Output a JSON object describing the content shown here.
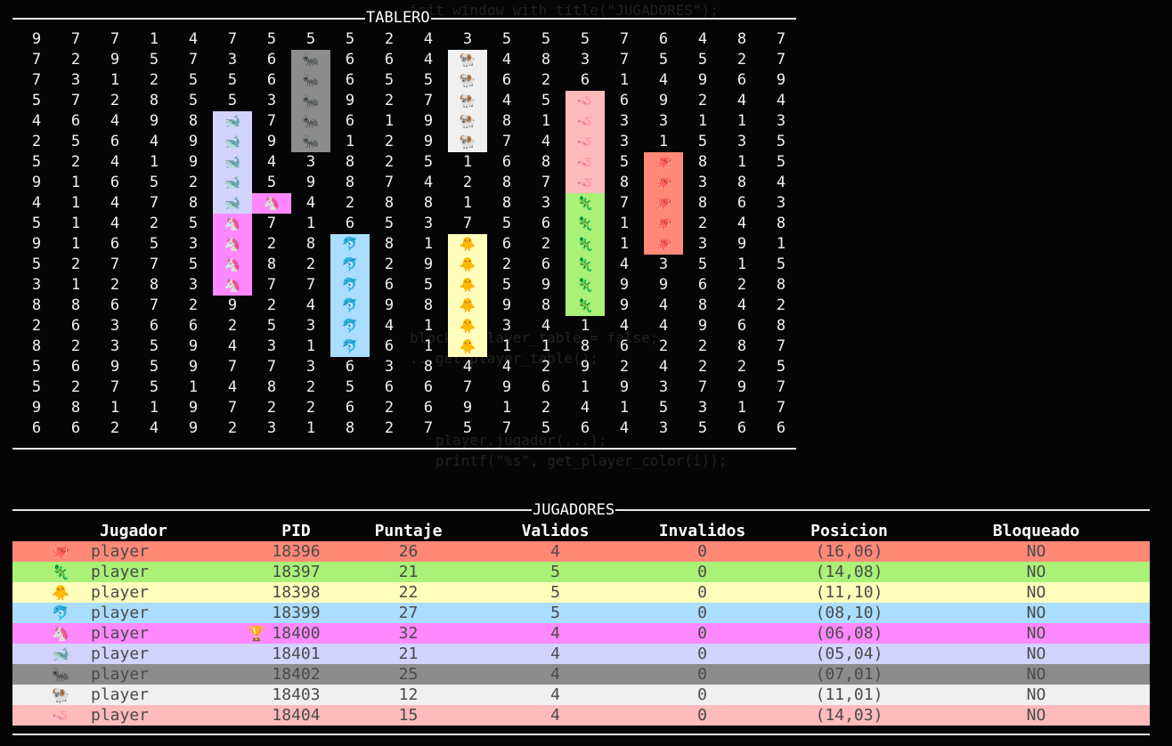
{
  "board": {
    "title": "TABLERO",
    "grid": [
      [
        "9",
        "7",
        "7",
        "1",
        "4",
        "7",
        "5",
        "5",
        "5",
        "2",
        "4",
        "3",
        "5",
        "5",
        "5",
        "7",
        "6",
        "4",
        "8",
        "7"
      ],
      [
        "7",
        "2",
        "9",
        "5",
        "7",
        "3",
        "6",
        "🐜",
        "6",
        "6",
        "4",
        "🐏",
        "4",
        "8",
        "3",
        "7",
        "5",
        "5",
        "2",
        "7"
      ],
      [
        "7",
        "3",
        "1",
        "2",
        "5",
        "5",
        "6",
        "🐜",
        "6",
        "5",
        "5",
        "🐏",
        "6",
        "2",
        "6",
        "1",
        "4",
        "9",
        "6",
        "9"
      ],
      [
        "5",
        "7",
        "2",
        "8",
        "5",
        "5",
        "3",
        "🐜",
        "9",
        "2",
        "7",
        "🐏",
        "4",
        "5",
        "🪱",
        "6",
        "9",
        "2",
        "4",
        "4"
      ],
      [
        "4",
        "6",
        "4",
        "9",
        "8",
        "🐋",
        "7",
        "🐜",
        "6",
        "1",
        "9",
        "🐏",
        "8",
        "1",
        "🪱",
        "3",
        "3",
        "1",
        "1",
        "3"
      ],
      [
        "2",
        "5",
        "6",
        "4",
        "9",
        "🐋",
        "9",
        "🐜",
        "1",
        "2",
        "9",
        "🐏",
        "7",
        "4",
        "🪱",
        "3",
        "1",
        "5",
        "3",
        "5"
      ],
      [
        "5",
        "2",
        "4",
        "1",
        "9",
        "🐋",
        "4",
        "3",
        "8",
        "2",
        "5",
        "1",
        "6",
        "8",
        "🪱",
        "5",
        "🐙",
        "8",
        "1",
        "5"
      ],
      [
        "9",
        "1",
        "6",
        "5",
        "2",
        "🐋",
        "5",
        "9",
        "8",
        "7",
        "4",
        "2",
        "8",
        "7",
        "🪱",
        "8",
        "🐙",
        "3",
        "8",
        "4"
      ],
      [
        "4",
        "1",
        "4",
        "7",
        "8",
        "🐋",
        "🦄",
        "4",
        "2",
        "8",
        "8",
        "1",
        "8",
        "3",
        "🦎",
        "7",
        "🐙",
        "8",
        "6",
        "3"
      ],
      [
        "5",
        "1",
        "4",
        "2",
        "5",
        "🦄",
        "7",
        "1",
        "6",
        "5",
        "3",
        "7",
        "5",
        "6",
        "🦎",
        "1",
        "🐙",
        "2",
        "4",
        "8"
      ],
      [
        "9",
        "1",
        "6",
        "5",
        "3",
        "🦄",
        "2",
        "8",
        "🐬",
        "8",
        "1",
        "🐥",
        "6",
        "2",
        "🦎",
        "1",
        "🐙",
        "3",
        "9",
        "1"
      ],
      [
        "5",
        "2",
        "7",
        "7",
        "5",
        "🦄",
        "8",
        "2",
        "🐬",
        "2",
        "9",
        "🐥",
        "2",
        "6",
        "🦎",
        "4",
        "3",
        "5",
        "1",
        "5"
      ],
      [
        "3",
        "1",
        "2",
        "8",
        "3",
        "🦄",
        "7",
        "7",
        "🐬",
        "6",
        "5",
        "🐥",
        "5",
        "9",
        "🦎",
        "9",
        "9",
        "6",
        "2",
        "8"
      ],
      [
        "8",
        "8",
        "6",
        "7",
        "2",
        "9",
        "2",
        "4",
        "🐬",
        "9",
        "8",
        "🐥",
        "9",
        "8",
        "🦎",
        "9",
        "4",
        "8",
        "4",
        "2"
      ],
      [
        "2",
        "6",
        "3",
        "6",
        "6",
        "2",
        "5",
        "3",
        "🐬",
        "4",
        "1",
        "🐥",
        "3",
        "4",
        "1",
        "4",
        "4",
        "9",
        "6",
        "8"
      ],
      [
        "8",
        "2",
        "3",
        "5",
        "9",
        "4",
        "3",
        "1",
        "🐬",
        "6",
        "1",
        "🐥",
        "1",
        "1",
        "8",
        "6",
        "2",
        "2",
        "8",
        "7"
      ],
      [
        "5",
        "6",
        "9",
        "5",
        "9",
        "7",
        "7",
        "3",
        "6",
        "3",
        "8",
        "4",
        "4",
        "2",
        "9",
        "2",
        "4",
        "2",
        "2",
        "5"
      ],
      [
        "5",
        "2",
        "7",
        "5",
        "1",
        "4",
        "8",
        "2",
        "5",
        "6",
        "6",
        "7",
        "9",
        "6",
        "1",
        "9",
        "3",
        "7",
        "9",
        "7"
      ],
      [
        "9",
        "8",
        "1",
        "1",
        "9",
        "7",
        "2",
        "2",
        "6",
        "2",
        "6",
        "9",
        "1",
        "2",
        "4",
        "1",
        "5",
        "3",
        "1",
        "7"
      ],
      [
        "6",
        "6",
        "2",
        "4",
        "9",
        "2",
        "3",
        "1",
        "8",
        "2",
        "7",
        "5",
        "7",
        "5",
        "6",
        "4",
        "3",
        "5",
        "6",
        "6"
      ]
    ]
  },
  "players_section": {
    "title": "JUGADORES",
    "headers": [
      "Jugador",
      "PID",
      "Puntaje",
      "Validos",
      "Invalidos",
      "Posicion",
      "Bloqueado"
    ]
  },
  "players": [
    {
      "icon": "🐙",
      "name": "player",
      "trophy": "",
      "pid": "18396",
      "score": "26",
      "valid": "4",
      "invalid": "0",
      "position": "(16,06)",
      "blocked": "NO",
      "color": "#ff8877"
    },
    {
      "icon": "🦎",
      "name": "player",
      "trophy": "",
      "pid": "18397",
      "score": "21",
      "valid": "5",
      "invalid": "0",
      "position": "(14,08)",
      "blocked": "NO",
      "color": "#aaf177"
    },
    {
      "icon": "🐥",
      "name": "player",
      "trophy": "",
      "pid": "18398",
      "score": "22",
      "valid": "5",
      "invalid": "0",
      "position": "(11,10)",
      "blocked": "NO",
      "color": "#ffffbb"
    },
    {
      "icon": "🐬",
      "name": "player",
      "trophy": "",
      "pid": "18399",
      "score": "27",
      "valid": "5",
      "invalid": "0",
      "position": "(08,10)",
      "blocked": "NO",
      "color": "#aaddff"
    },
    {
      "icon": "🦄",
      "name": "player",
      "trophy": "🏆",
      "pid": "18400",
      "score": "32",
      "valid": "4",
      "invalid": "0",
      "position": "(06,08)",
      "blocked": "NO",
      "color": "#ff88ff"
    },
    {
      "icon": "🐋",
      "name": "player",
      "trophy": "",
      "pid": "18401",
      "score": "21",
      "valid": "4",
      "invalid": "0",
      "position": "(05,04)",
      "blocked": "NO",
      "color": "#d3d3ff"
    },
    {
      "icon": "🐜",
      "name": "player",
      "trophy": "",
      "pid": "18402",
      "score": "25",
      "valid": "4",
      "invalid": "0",
      "position": "(07,01)",
      "blocked": "NO",
      "color": "#8c8c8c"
    },
    {
      "icon": "🐏",
      "name": "player",
      "trophy": "",
      "pid": "18403",
      "score": "12",
      "valid": "4",
      "invalid": "0",
      "position": "(11,01)",
      "blocked": "NO",
      "color": "#f0f0f0"
    },
    {
      "icon": "🪱",
      "name": "player",
      "trophy": "",
      "pid": "18404",
      "score": "15",
      "valid": "4",
      "invalid": "0",
      "position": "(14,03)",
      "blocked": "NO",
      "color": "#ffbbbb"
    }
  ],
  "background_terminal": {
    "lines": [
      "init_window_with_title(\"JUGADORES\");",
      "",
      "",
      "",
      "",
      "",
      "",
      "",
      "",
      "",
      "",
      "",
      "",
      "",
      "",
      "",
      "blocked_player_table = false;",
      "...get_player_table();",
      "",
      "",
      "",
      "   player.jugador(...);",
      "   printf(\"%s\", get_player_color(i));"
    ]
  }
}
